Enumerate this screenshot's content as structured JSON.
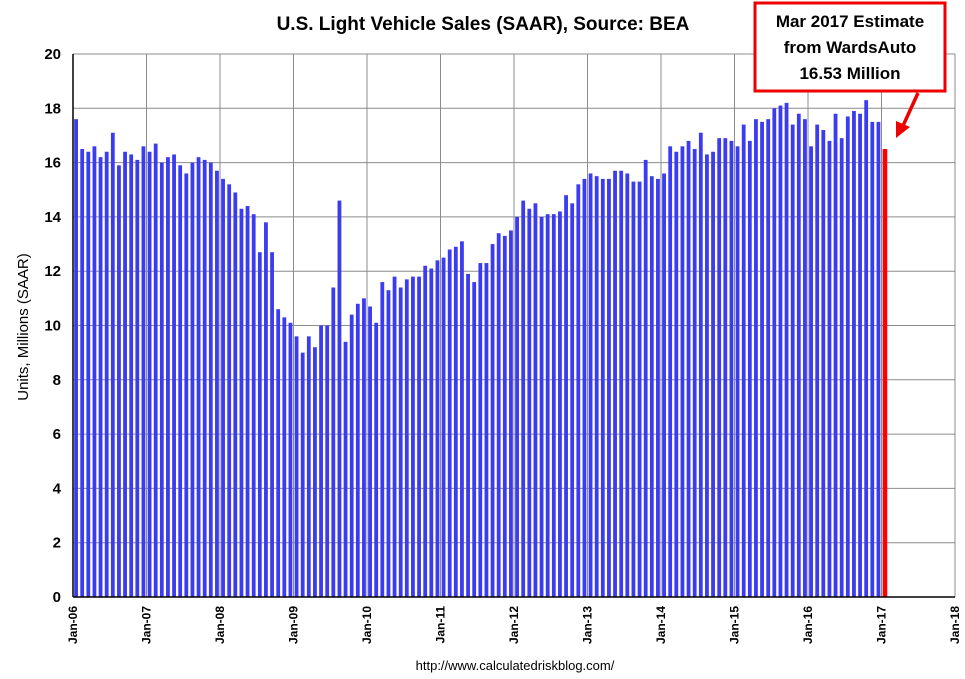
{
  "chart_data": {
    "type": "bar",
    "title": "U.S. Light Vehicle Sales (SAAR), Source: BEA",
    "ylabel": "Units, Millions (SAAR)",
    "xlabel": "",
    "ylim": [
      0,
      20
    ],
    "yticks": [
      0,
      2,
      4,
      6,
      8,
      10,
      12,
      14,
      16,
      18,
      20
    ],
    "xticks": [
      "Jan-06",
      "Jan-07",
      "Jan-08",
      "Jan-09",
      "Jan-10",
      "Jan-11",
      "Jan-12",
      "Jan-13",
      "Jan-14",
      "Jan-15",
      "Jan-16",
      "Jan-17",
      "Jan-18"
    ],
    "start_period": "Jan-06",
    "grid": true,
    "bar_color": "#3b3bf0",
    "highlight_color": "#ff0000",
    "series": [
      {
        "values": [
          17.6,
          16.5,
          16.4,
          16.6,
          16.2,
          16.4,
          17.1,
          15.9,
          16.4,
          16.3,
          16.1,
          16.6,
          16.4,
          16.7,
          16.0,
          16.2,
          16.3,
          15.9,
          15.6,
          16.0,
          16.2,
          16.1,
          16.0,
          15.7,
          15.4,
          15.2,
          14.9,
          14.3,
          14.4,
          14.1,
          12.7,
          13.8,
          12.7,
          10.6,
          10.3,
          10.1,
          9.6,
          9.0,
          9.6,
          9.2,
          10.0,
          10.0,
          11.4,
          14.6,
          9.4,
          10.4,
          10.8,
          11.0,
          10.7,
          10.1,
          11.6,
          11.3,
          11.8,
          11.4,
          11.7,
          11.8,
          11.8,
          12.2,
          12.1,
          12.4,
          12.5,
          12.8,
          12.9,
          13.1,
          11.9,
          11.6,
          12.3,
          12.3,
          13.0,
          13.4,
          13.3,
          13.5,
          14.0,
          14.6,
          14.3,
          14.5,
          14.0,
          14.1,
          14.1,
          14.2,
          14.8,
          14.5,
          15.2,
          15.4,
          15.6,
          15.5,
          15.4,
          15.4,
          15.7,
          15.7,
          15.6,
          15.3,
          15.3,
          16.1,
          15.5,
          15.4,
          15.6,
          16.6,
          16.4,
          16.6,
          16.8,
          16.5,
          17.1,
          16.3,
          16.4,
          16.9,
          16.9,
          16.8,
          16.6,
          17.4,
          16.8,
          17.6,
          17.5,
          17.6,
          18.0,
          18.1,
          18.2,
          17.4,
          17.8,
          17.6,
          16.6,
          17.4,
          17.2,
          16.8,
          17.8,
          16.9,
          17.7,
          17.9,
          17.8,
          18.3,
          17.5,
          17.5,
          16.5
        ]
      }
    ],
    "annotation": {
      "lines": [
        "Mar 2017 Estimate",
        "from WardsAuto",
        "16.53 Million"
      ],
      "highlight_value": 16.53
    }
  },
  "source_text": "http://www.calculatedriskblog.com/"
}
